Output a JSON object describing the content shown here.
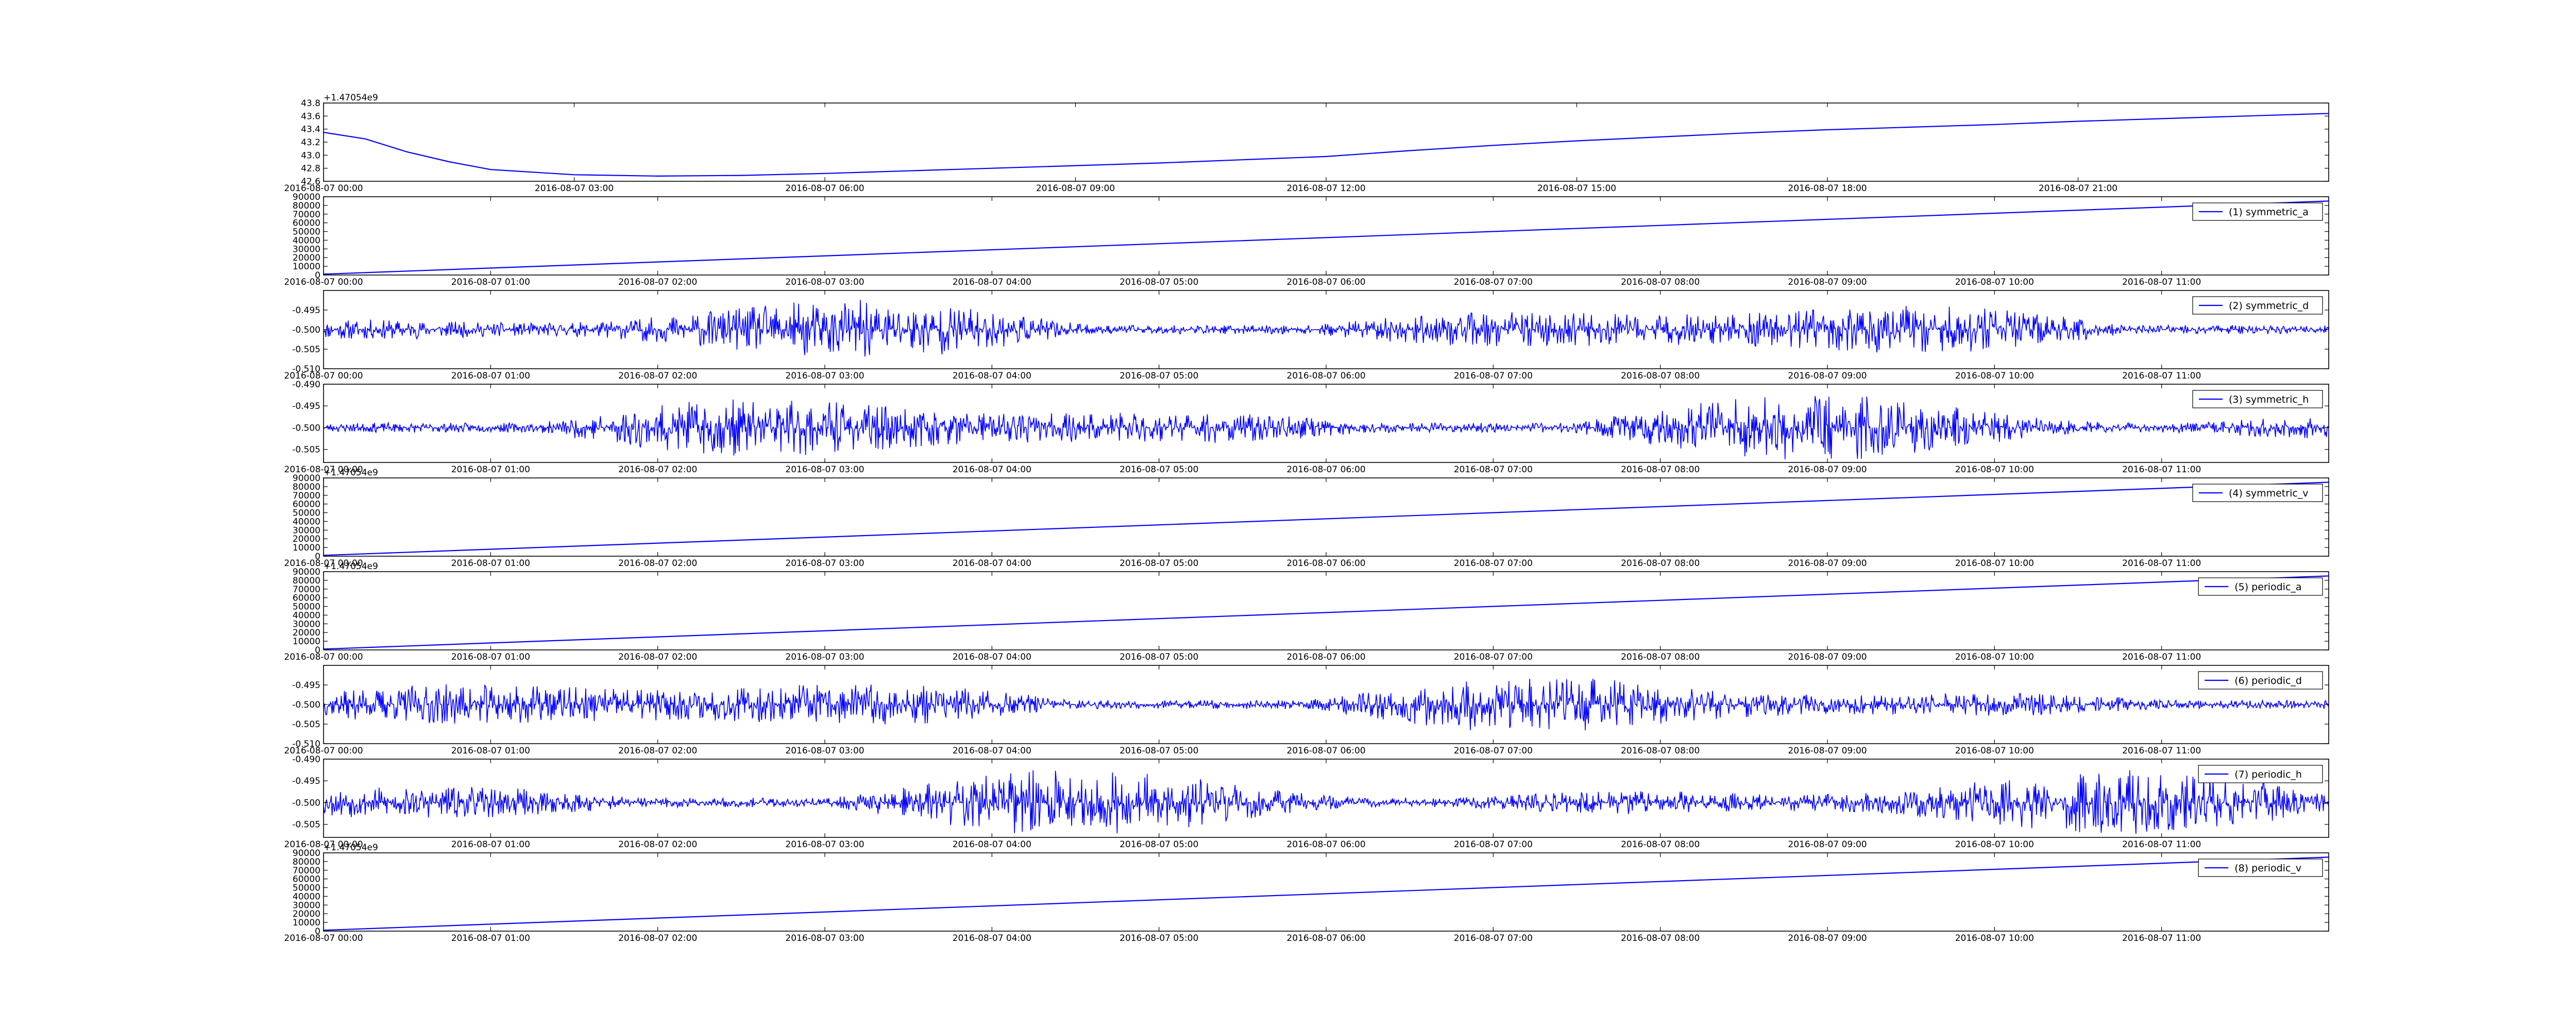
{
  "colors": {
    "line": "#0000ff",
    "axes": "#000000",
    "background": "#ffffff"
  },
  "chart_data": [
    {
      "type": "line",
      "title": "",
      "xlabel": "",
      "ylabel": "",
      "legend": null,
      "xlim": [
        "2016-08-07 00:00",
        "2016-08-08 00:00"
      ],
      "ylim": [
        42.6,
        43.8
      ],
      "x_tick_labels": [
        "2016-08-07 00:00",
        "2016-08-07 03:00",
        "2016-08-07 06:00",
        "2016-08-07 09:00",
        "2016-08-07 12:00",
        "2016-08-07 15:00",
        "2016-08-07 18:00",
        "2016-08-07 21:00"
      ],
      "y_tick_labels": [
        "42.6",
        "42.8",
        "43.0",
        "43.2",
        "43.4",
        "43.6",
        "43.8"
      ],
      "y_offset_label": "+1.47054e9",
      "series": [
        {
          "kind": "smooth",
          "x": [
            "2016-08-07 00:00",
            "2016-08-07 00:30",
            "2016-08-07 01:00",
            "2016-08-07 01:30",
            "2016-08-07 02:00",
            "2016-08-07 03:00",
            "2016-08-07 04:00",
            "2016-08-07 05:00",
            "2016-08-07 06:00",
            "2016-08-07 07:00",
            "2016-08-07 08:00",
            "2016-08-07 09:00",
            "2016-08-07 10:00",
            "2016-08-07 11:00",
            "2016-08-07 12:00",
            "2016-08-07 13:00",
            "2016-08-07 14:00",
            "2016-08-07 15:00",
            "2016-08-07 16:00",
            "2016-08-07 17:00",
            "2016-08-07 18:00",
            "2016-08-07 19:00",
            "2016-08-07 20:00",
            "2016-08-07 21:00",
            "2016-08-07 22:00",
            "2016-08-07 23:00",
            "2016-08-08 00:00"
          ],
          "y": [
            43.35,
            43.25,
            43.05,
            42.9,
            42.78,
            42.7,
            42.68,
            42.69,
            42.72,
            42.76,
            42.8,
            42.84,
            42.88,
            42.93,
            42.98,
            43.07,
            43.15,
            43.22,
            43.28,
            43.34,
            43.39,
            43.43,
            43.47,
            43.52,
            43.56,
            43.6,
            43.64
          ]
        }
      ]
    },
    {
      "type": "line",
      "title": "",
      "xlabel": "",
      "ylabel": "",
      "legend": "(1) symmetric_a",
      "xlim": [
        "2016-08-07 00:00",
        "2016-08-07 12:00"
      ],
      "ylim": [
        0,
        90000
      ],
      "x_tick_labels": [
        "2016-08-07 00:00",
        "2016-08-07 01:00",
        "2016-08-07 02:00",
        "2016-08-07 03:00",
        "2016-08-07 04:00",
        "2016-08-07 05:00",
        "2016-08-07 06:00",
        "2016-08-07 07:00",
        "2016-08-07 08:00",
        "2016-08-07 09:00",
        "2016-08-07 10:00",
        "2016-08-07 11:00"
      ],
      "y_tick_labels": [
        "0",
        "10000",
        "20000",
        "30000",
        "40000",
        "50000",
        "60000",
        "70000",
        "80000",
        "90000"
      ],
      "series": [
        {
          "name": "(1) symmetric_a",
          "kind": "linear",
          "x": [
            "2016-08-07 00:00",
            "2016-08-07 12:00"
          ],
          "y": [
            1000,
            85000
          ]
        }
      ]
    },
    {
      "type": "line",
      "title": "",
      "xlabel": "",
      "ylabel": "",
      "legend": "(2) symmetric_d",
      "xlim": [
        "2016-08-07 00:00",
        "2016-08-07 12:00"
      ],
      "ylim": [
        -0.51,
        -0.49
      ],
      "x_tick_labels": [
        "2016-08-07 00:00",
        "2016-08-07 01:00",
        "2016-08-07 02:00",
        "2016-08-07 03:00",
        "2016-08-07 04:00",
        "2016-08-07 05:00",
        "2016-08-07 06:00",
        "2016-08-07 07:00",
        "2016-08-07 08:00",
        "2016-08-07 09:00",
        "2016-08-07 10:00",
        "2016-08-07 11:00"
      ],
      "y_tick_labels": [
        "-0.510",
        "-0.505",
        "-0.500",
        "-0.495"
      ],
      "series": [
        {
          "name": "(2) symmetric_d",
          "kind": "noise",
          "center": -0.5,
          "amplitude": 0.006,
          "seed": 11
        }
      ]
    },
    {
      "type": "line",
      "title": "",
      "xlabel": "",
      "ylabel": "",
      "legend": "(3) symmetric_h",
      "xlim": [
        "2016-08-07 00:00",
        "2016-08-07 12:00"
      ],
      "ylim": [
        -0.508,
        -0.49
      ],
      "x_tick_labels": [
        "2016-08-07 00:00",
        "2016-08-07 01:00",
        "2016-08-07 02:00",
        "2016-08-07 03:00",
        "2016-08-07 04:00",
        "2016-08-07 05:00",
        "2016-08-07 06:00",
        "2016-08-07 07:00",
        "2016-08-07 08:00",
        "2016-08-07 09:00",
        "2016-08-07 10:00",
        "2016-08-07 11:00"
      ],
      "y_tick_labels": [
        "-0.505",
        "-0.500",
        "-0.495",
        "-0.490"
      ],
      "series": [
        {
          "name": "(3) symmetric_h",
          "kind": "noise",
          "center": -0.5,
          "amplitude": 0.006,
          "seed": 23
        }
      ]
    },
    {
      "type": "line",
      "title": "",
      "xlabel": "",
      "ylabel": "",
      "legend": "(4) symmetric_v",
      "xlim": [
        "2016-08-07 00:00",
        "2016-08-07 12:00"
      ],
      "ylim": [
        0,
        90000
      ],
      "x_tick_labels": [
        "2016-08-07 00:00",
        "2016-08-07 01:00",
        "2016-08-07 02:00",
        "2016-08-07 03:00",
        "2016-08-07 04:00",
        "2016-08-07 05:00",
        "2016-08-07 06:00",
        "2016-08-07 07:00",
        "2016-08-07 08:00",
        "2016-08-07 09:00",
        "2016-08-07 10:00",
        "2016-08-07 11:00"
      ],
      "y_tick_labels": [
        "0",
        "10000",
        "20000",
        "30000",
        "40000",
        "50000",
        "60000",
        "70000",
        "80000",
        "90000"
      ],
      "y_offset_label": "+1.47054e9",
      "series": [
        {
          "name": "(4) symmetric_v",
          "kind": "linear",
          "x": [
            "2016-08-07 00:00",
            "2016-08-07 12:00"
          ],
          "y": [
            1000,
            85000
          ]
        }
      ]
    },
    {
      "type": "line",
      "title": "",
      "xlabel": "",
      "ylabel": "",
      "legend": "(5) periodic_a",
      "xlim": [
        "2016-08-07 00:00",
        "2016-08-07 12:00"
      ],
      "ylim": [
        0,
        90000
      ],
      "x_tick_labels": [
        "2016-08-07 00:00",
        "2016-08-07 01:00",
        "2016-08-07 02:00",
        "2016-08-07 03:00",
        "2016-08-07 04:00",
        "2016-08-07 05:00",
        "2016-08-07 06:00",
        "2016-08-07 07:00",
        "2016-08-07 08:00",
        "2016-08-07 09:00",
        "2016-08-07 10:00",
        "2016-08-07 11:00"
      ],
      "y_tick_labels": [
        "0",
        "10000",
        "20000",
        "30000",
        "40000",
        "50000",
        "60000",
        "70000",
        "80000",
        "90000"
      ],
      "y_offset_label": "+1.47054e9",
      "series": [
        {
          "name": "(5) periodic_a",
          "kind": "linear",
          "x": [
            "2016-08-07 00:00",
            "2016-08-07 12:00"
          ],
          "y": [
            1000,
            85000
          ]
        }
      ]
    },
    {
      "type": "line",
      "title": "",
      "xlabel": "",
      "ylabel": "",
      "legend": "(6) periodic_d",
      "xlim": [
        "2016-08-07 00:00",
        "2016-08-07 12:00"
      ],
      "ylim": [
        -0.51,
        -0.49
      ],
      "x_tick_labels": [
        "2016-08-07 00:00",
        "2016-08-07 01:00",
        "2016-08-07 02:00",
        "2016-08-07 03:00",
        "2016-08-07 04:00",
        "2016-08-07 05:00",
        "2016-08-07 06:00",
        "2016-08-07 07:00",
        "2016-08-07 08:00",
        "2016-08-07 09:00",
        "2016-08-07 10:00",
        "2016-08-07 11:00"
      ],
      "y_tick_labels": [
        "-0.510",
        "-0.505",
        "-0.500",
        "-0.495"
      ],
      "series": [
        {
          "name": "(6) periodic_d",
          "kind": "noise",
          "center": -0.5,
          "amplitude": 0.006,
          "seed": 37
        }
      ]
    },
    {
      "type": "line",
      "title": "",
      "xlabel": "",
      "ylabel": "",
      "legend": "(7) periodic_h",
      "xlim": [
        "2016-08-07 00:00",
        "2016-08-07 12:00"
      ],
      "ylim": [
        -0.508,
        -0.49
      ],
      "x_tick_labels": [
        "2016-08-07 00:00",
        "2016-08-07 01:00",
        "2016-08-07 02:00",
        "2016-08-07 03:00",
        "2016-08-07 04:00",
        "2016-08-07 05:00",
        "2016-08-07 06:00",
        "2016-08-07 07:00",
        "2016-08-07 08:00",
        "2016-08-07 09:00",
        "2016-08-07 10:00",
        "2016-08-07 11:00"
      ],
      "y_tick_labels": [
        "-0.505",
        "-0.500",
        "-0.495",
        "-0.490"
      ],
      "series": [
        {
          "name": "(7) periodic_h",
          "kind": "noise",
          "center": -0.5,
          "amplitude": 0.006,
          "seed": 53
        }
      ]
    },
    {
      "type": "line",
      "title": "",
      "xlabel": "",
      "ylabel": "",
      "legend": "(8) periodic_v",
      "xlim": [
        "2016-08-07 00:00",
        "2016-08-07 12:00"
      ],
      "ylim": [
        0,
        90000
      ],
      "x_tick_labels": [
        "2016-08-07 00:00",
        "2016-08-07 01:00",
        "2016-08-07 02:00",
        "2016-08-07 03:00",
        "2016-08-07 04:00",
        "2016-08-07 05:00",
        "2016-08-07 06:00",
        "2016-08-07 07:00",
        "2016-08-07 08:00",
        "2016-08-07 09:00",
        "2016-08-07 10:00",
        "2016-08-07 11:00"
      ],
      "y_tick_labels": [
        "0",
        "10000",
        "20000",
        "30000",
        "40000",
        "50000",
        "60000",
        "70000",
        "80000",
        "90000"
      ],
      "y_offset_label": "+1.47054e9",
      "series": [
        {
          "name": "(8) periodic_v",
          "kind": "linear",
          "x": [
            "2016-08-07 00:00",
            "2016-08-07 12:00"
          ],
          "y": [
            1000,
            85000
          ]
        }
      ]
    }
  ]
}
